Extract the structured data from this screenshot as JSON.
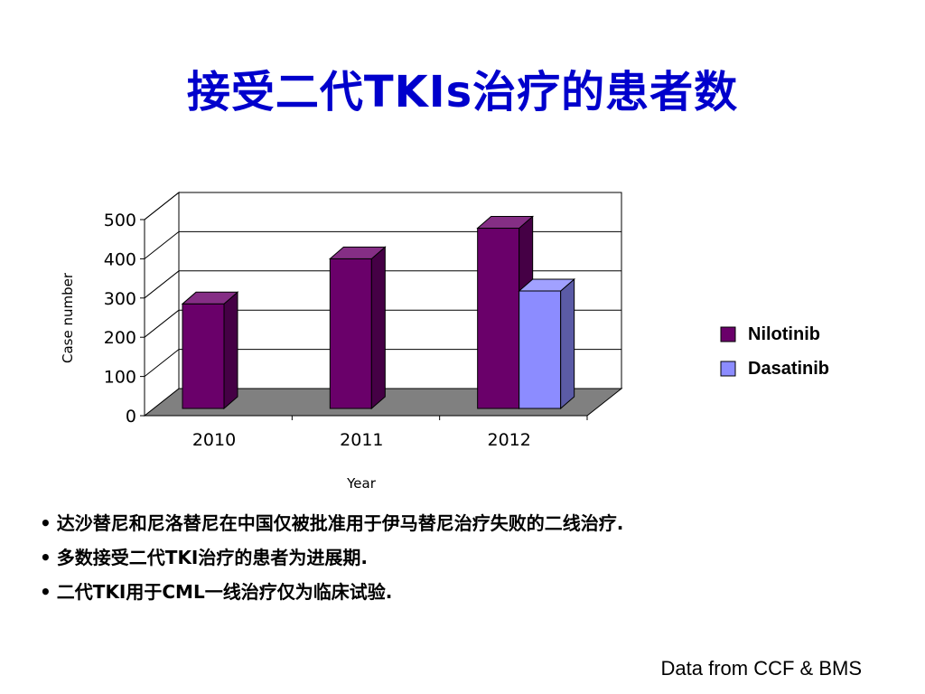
{
  "slide": {
    "title": "接受二代TKIs治疗的患者数",
    "bullets": [
      "达沙替尼和尼洛替尼在中国仅被批准用于伊马替尼治疗失败的二线治疗.",
      "多数接受二代TKI治疗的患者为进展期.",
      "二代TKI用于CML一线治疗仅为临床试验."
    ],
    "source_note": "Data from CCF & BMS"
  },
  "chart_data": {
    "type": "bar",
    "title": "",
    "xlabel": "Year",
    "ylabel": "Case number",
    "categories": [
      "2010",
      "2011",
      "2012"
    ],
    "series": [
      {
        "name": "Nilotinib",
        "values": [
          285,
          400,
          478
        ],
        "color": "#6a006a"
      },
      {
        "name": "Dasatinib",
        "values": [
          null,
          null,
          318
        ],
        "color": "#8c8cff"
      }
    ],
    "ylim": [
      0,
      500
    ],
    "yticks": [
      0,
      100,
      200,
      300,
      400,
      500
    ],
    "grid": true,
    "legend_position": "right",
    "style": "3d-clustered-column"
  }
}
